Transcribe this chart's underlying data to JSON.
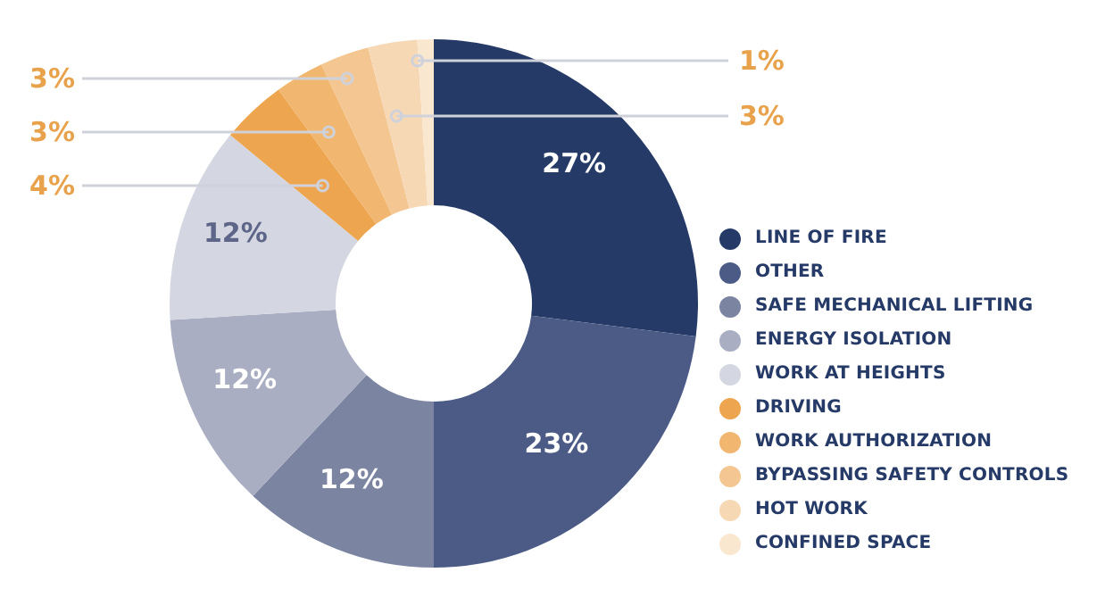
{
  "chart_data": {
    "type": "donut",
    "categories": [
      "LINE OF FIRE",
      "OTHER",
      "SAFE MECHANICAL LIFTING",
      "ENERGY ISOLATION",
      "WORK AT HEIGHTS",
      "DRIVING",
      "WORK AUTHORIZATION",
      "BYPASSING SAFETY CONTROLS",
      "HOT WORK",
      "CONFINED SPACE"
    ],
    "values": [
      27,
      23,
      12,
      12,
      12,
      4,
      3,
      3,
      3,
      1
    ],
    "colors": [
      "#253a66",
      "#4b5b86",
      "#7b84a1",
      "#a9aec2",
      "#d4d7e1",
      "#eea54f",
      "#f1b66f",
      "#f4c792",
      "#f6d8b5",
      "#f9e7d0"
    ],
    "legend": "right",
    "value_labels": [
      "27%",
      "23%",
      "12%",
      "12%",
      "12%",
      "4%",
      "3%",
      "3%",
      "3%",
      "1%"
    ]
  }
}
